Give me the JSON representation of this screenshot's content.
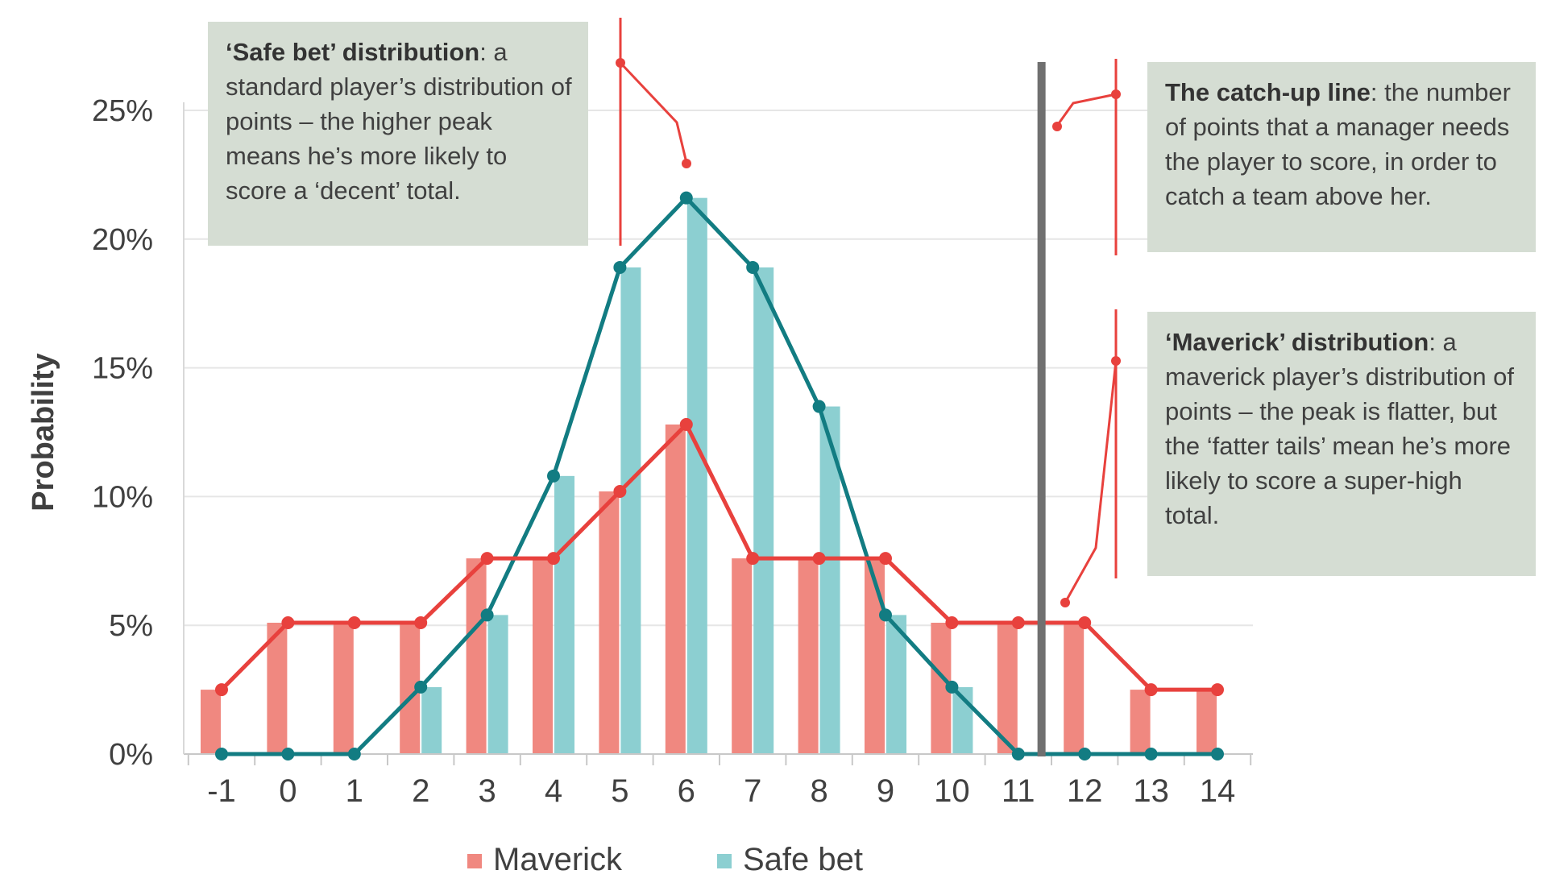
{
  "chart_data": {
    "type": "bar",
    "title": "",
    "xlabel": "",
    "ylabel": "Probability",
    "categories": [
      "-1",
      "0",
      "1",
      "2",
      "3",
      "4",
      "5",
      "6",
      "7",
      "8",
      "9",
      "10",
      "11",
      "12",
      "13",
      "14"
    ],
    "ylim": [
      0,
      25
    ],
    "yticks": [
      "0%",
      "5%",
      "10%",
      "15%",
      "20%",
      "25%"
    ],
    "grid": true,
    "legend_placement": "bottom",
    "series": [
      {
        "name": "Maverick",
        "color": "#f08880",
        "line_color": "#e8413d",
        "values": [
          2.5,
          5.1,
          5.1,
          5.1,
          7.6,
          7.6,
          10.2,
          12.8,
          7.6,
          7.6,
          7.6,
          5.1,
          5.1,
          5.1,
          2.5,
          2.5
        ]
      },
      {
        "name": "Safe bet",
        "color": "#8ccfd1",
        "line_color": "#127c82",
        "values": [
          0,
          0,
          0,
          2.6,
          5.4,
          10.8,
          18.9,
          21.6,
          18.9,
          13.5,
          5.4,
          2.6,
          0,
          0,
          0,
          0
        ]
      }
    ],
    "catch_up_line_after": "11"
  },
  "annotations": {
    "safe": {
      "bold": "‘Safe bet’ distribution",
      "text": ": a standard player’s distribution of points – the higher peak means he’s more likely to score a ‘decent’ total."
    },
    "catch": {
      "bold": "The catch-up line",
      "text": ": the number of points that a manager needs the player to score, in order to catch a team above her."
    },
    "mav": {
      "bold": "‘Maverick’ distribution",
      "text": ": a maverick player’s distribution of points – the peak is flatter, but the ‘fatter tails’ mean he’s more likely to score a super-high total."
    }
  },
  "colors": {
    "callout": "#e8413d",
    "catch_line": "#707070",
    "grid": "#e6e6e6"
  }
}
